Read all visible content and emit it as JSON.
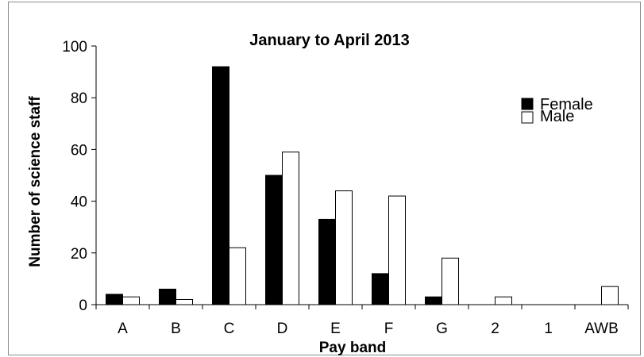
{
  "chart_data": {
    "type": "bar",
    "title": "January to April 2013",
    "xlabel": "Pay band",
    "ylabel": "Number of science staff",
    "categories": [
      "A",
      "B",
      "C",
      "D",
      "E",
      "F",
      "G",
      "2",
      "1",
      "AWB"
    ],
    "series": [
      {
        "name": "Female",
        "values": [
          4,
          6,
          92,
          50,
          33,
          12,
          3,
          0,
          0,
          0
        ],
        "fill": "#000000"
      },
      {
        "name": "Male",
        "values": [
          3,
          2,
          22,
          59,
          44,
          42,
          18,
          3,
          0,
          7
        ],
        "fill": "#ffffff"
      }
    ],
    "ylim": [
      0,
      100
    ],
    "yticks": [
      0,
      20,
      40,
      60,
      80,
      100
    ],
    "grid": false,
    "legend_position": "top-right"
  }
}
